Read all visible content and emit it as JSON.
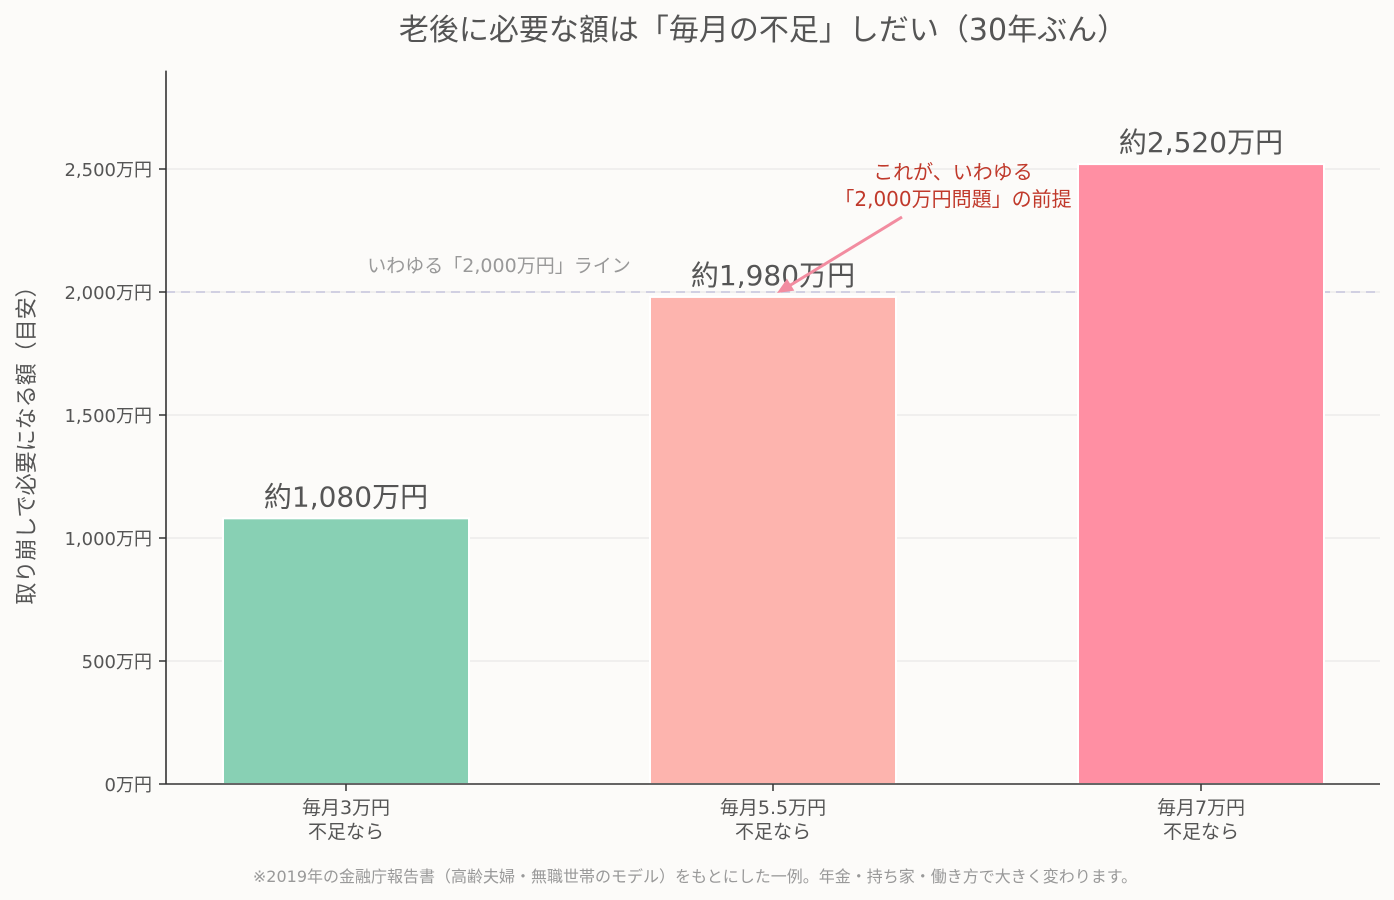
{
  "chart_data": {
    "type": "bar",
    "title": "老後に必要な額は「毎月の不足」しだい（30年ぶん）",
    "ylabel": "取り崩しで必要になる額（目安）",
    "xlabel": "",
    "ylim": [
      0,
      2900
    ],
    "yticks": [
      0,
      500,
      1000,
      1500,
      2000,
      2500
    ],
    "ytick_labels": [
      "0万円",
      "500万円",
      "1,000万円",
      "1,500万円",
      "2,000万円",
      "2,500万円"
    ],
    "grid": true,
    "categories": [
      [
        "毎月3万円",
        "不足なら"
      ],
      [
        "毎月5.5万円",
        "不足なら"
      ],
      [
        "毎月7万円",
        "不足なら"
      ]
    ],
    "values": [
      1080,
      1980,
      2520
    ],
    "value_labels": [
      "約1,080万円",
      "約1,980万円",
      "約2,520万円"
    ],
    "colors": [
      "#88d0b4",
      "#fdb4ae",
      "#ff8fa3"
    ],
    "reference_line": {
      "value": 2000,
      "label": "いわゆる「2,000万円」ライン",
      "color": "#c5c5dd"
    },
    "annotation": {
      "lines": [
        "これが、いわゆる",
        "「2,000万円問題」の前提"
      ],
      "target_category_index": 1,
      "target_value": 2000,
      "text_color": "#c0392b",
      "arrow_color": "#f28ca0"
    },
    "footnote": "※2019年の金融庁報告書（高齢夫婦・無職世帯のモデル）をもとにした一例。年金・持ち家・働き方で大きく変わります。"
  }
}
